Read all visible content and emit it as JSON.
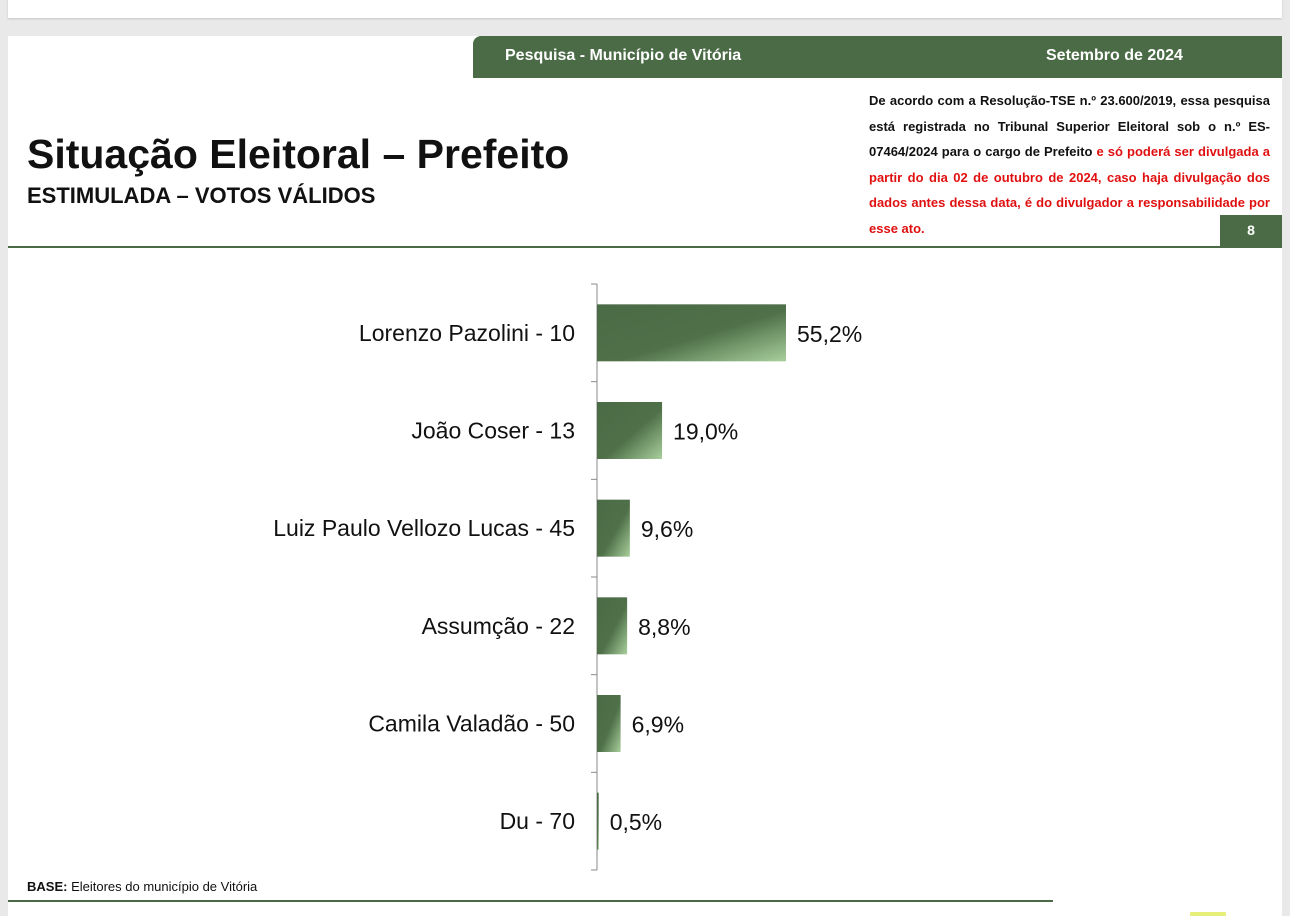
{
  "header": {
    "survey_label": "Pesquisa - Município de Vitória",
    "date_label": "Setembro de 2024"
  },
  "title": "Situação Eleitoral – Prefeito",
  "subtitle": "ESTIMULADA – VOTOS VÁLIDOS",
  "notice": {
    "text_black": "De acordo com a Resolução-TSE n.º 23.600/2019, essa pesquisa está registrada no Tribunal Superior Eleitoral sob o n.º ES-07464/2024 para o cargo de Prefeito",
    "text_red": " e só poderá ser divulgada a partir do dia 02 de outubro de 2024, caso haja divulgação dos dados antes dessa data, é do divulgador a responsabilidade por esse ato."
  },
  "page_number": "8",
  "footer": {
    "base_label": "BASE:",
    "base_text": " Eleitores do município de Vitória"
  },
  "colors": {
    "brand_green": "#4a6b45",
    "bar_dark": "#4a6b45",
    "bar_light": "#a9cf9c",
    "notice_red": "#e01010"
  },
  "chart_data": {
    "type": "bar",
    "orientation": "horizontal",
    "categories": [
      "Lorenzo Pazolini - 10",
      "João Coser - 13",
      "Luiz Paulo Vellozo Lucas - 45",
      "Assumção - 22",
      "Camila Valadão - 50",
      "Du - 70"
    ],
    "values": [
      55.2,
      19.0,
      9.6,
      8.8,
      6.9,
      0.5
    ],
    "value_labels": [
      "55,2%",
      "19,0%",
      "9,6%",
      "8,8%",
      "6,9%",
      "0,5%"
    ],
    "title": "",
    "xlabel": "",
    "ylabel": "",
    "xlim": [
      0,
      100
    ],
    "grid": false
  }
}
